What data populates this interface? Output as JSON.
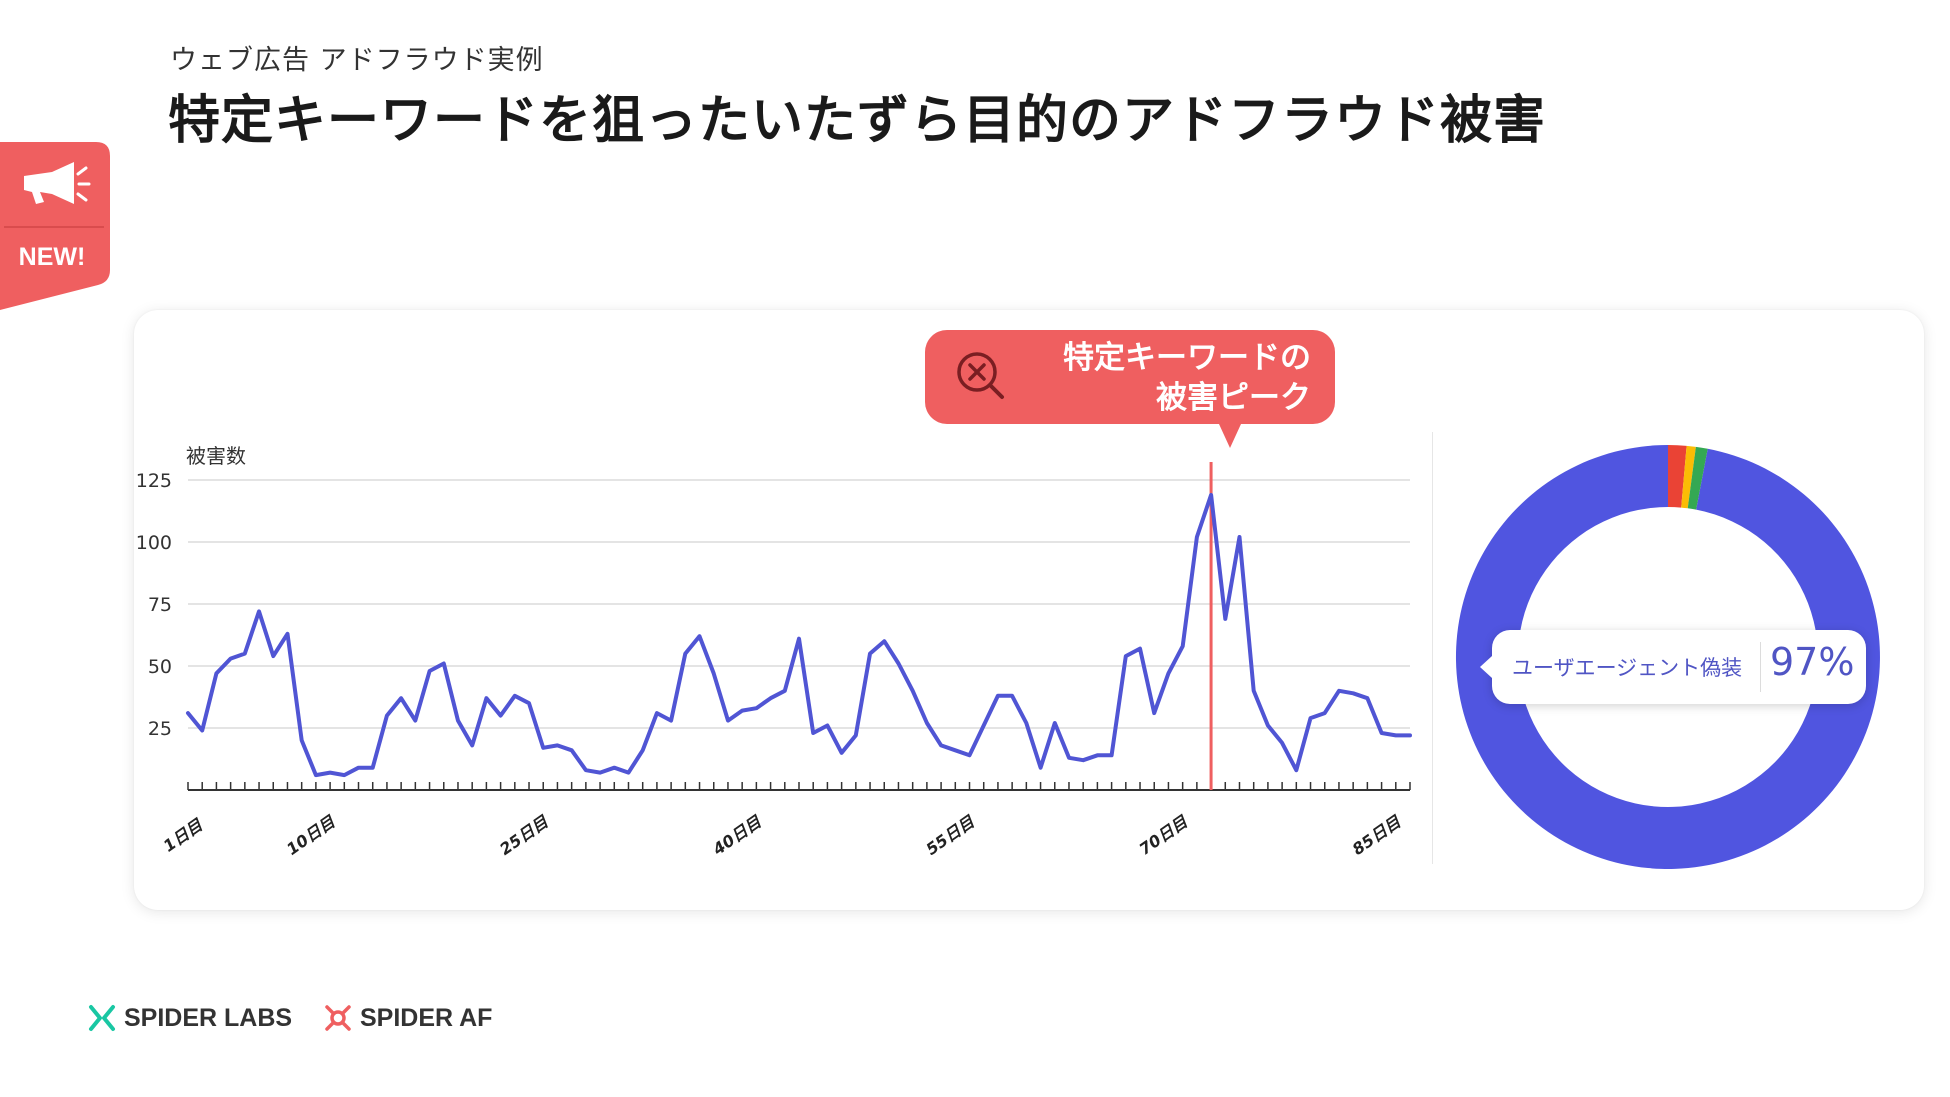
{
  "header": {
    "subtitle": "ウェブ広告 アドフラウド実例",
    "title": "特定キーワードを狙ったいたずら目的のアドフラウド被害"
  },
  "badge": {
    "label": "NEW!",
    "icon": "megaphone-icon",
    "color": "#ef5f60"
  },
  "callout": {
    "text": "特定キーワードの\n被害ピーク",
    "icon": "search-x-icon",
    "color": "#ef5f60"
  },
  "tooltip": {
    "label": "ユーザエージェント偽装",
    "value": "97%"
  },
  "footer": {
    "logo1": "SPIDER LABS",
    "logo2": "SPIDER AF"
  },
  "chart_data": [
    {
      "type": "line",
      "ylabel": "被害数",
      "xlabel": "",
      "ylim": [
        0,
        135
      ],
      "yticks": [
        25,
        50,
        75,
        100,
        125
      ],
      "xtick_labels": [
        {
          "day": 1,
          "label": "1日目"
        },
        {
          "day": 10,
          "label": "10日目"
        },
        {
          "day": 25,
          "label": "25日目"
        },
        {
          "day": 40,
          "label": "40日目"
        },
        {
          "day": 55,
          "label": "55日目"
        },
        {
          "day": 70,
          "label": "70日目"
        },
        {
          "day": 85,
          "label": "85日目"
        }
      ],
      "grid": true,
      "series": [
        {
          "color": "#5055d4",
          "x": [
            1,
            2,
            3,
            4,
            5,
            6,
            7,
            8,
            9,
            10,
            11,
            12,
            13,
            14,
            15,
            16,
            17,
            18,
            19,
            20,
            21,
            22,
            23,
            24,
            25,
            26,
            27,
            28,
            29,
            30,
            31,
            32,
            33,
            34,
            35,
            36,
            37,
            38,
            39,
            40,
            41,
            42,
            43,
            44,
            45,
            46,
            47,
            48,
            49,
            50,
            51,
            52,
            53,
            54,
            55,
            56,
            57,
            58,
            59,
            60,
            61,
            62,
            63,
            64,
            65,
            66,
            67,
            68,
            69,
            70,
            71,
            72,
            73,
            74,
            75,
            76,
            77,
            78,
            79,
            80,
            81,
            82,
            83,
            84,
            85,
            86,
            87
          ],
          "values": [
            31,
            24,
            47,
            53,
            55,
            72,
            54,
            63,
            20,
            6,
            7,
            6,
            9,
            9,
            30,
            37,
            28,
            48,
            51,
            28,
            18,
            37,
            30,
            38,
            35,
            17,
            18,
            16,
            8,
            7,
            9,
            7,
            16,
            31,
            28,
            55,
            62,
            47,
            28,
            32,
            33,
            37,
            40,
            61,
            23,
            26,
            15,
            22,
            55,
            60,
            51,
            40,
            27,
            18,
            16,
            14,
            26,
            38,
            38,
            27,
            9,
            27,
            13,
            12,
            14,
            14,
            54,
            57,
            31,
            47,
            58,
            102,
            119,
            69,
            102,
            40,
            26,
            19,
            8,
            29,
            31,
            40,
            39,
            37,
            23,
            22,
            22
          ]
        }
      ],
      "highlight": {
        "day": 73,
        "color": "#ef5f60"
      }
    },
    {
      "type": "pie",
      "style": "donut",
      "slices": [
        {
          "name": "ユーザエージェント偽装",
          "value": 97,
          "color": "#5055e0"
        },
        {
          "name": "",
          "value": 1.4,
          "color": "#ea4335"
        },
        {
          "name": "",
          "value": 0.7,
          "color": "#fbbc05"
        },
        {
          "name": "",
          "value": 0.9,
          "color": "#34a853"
        }
      ]
    }
  ]
}
